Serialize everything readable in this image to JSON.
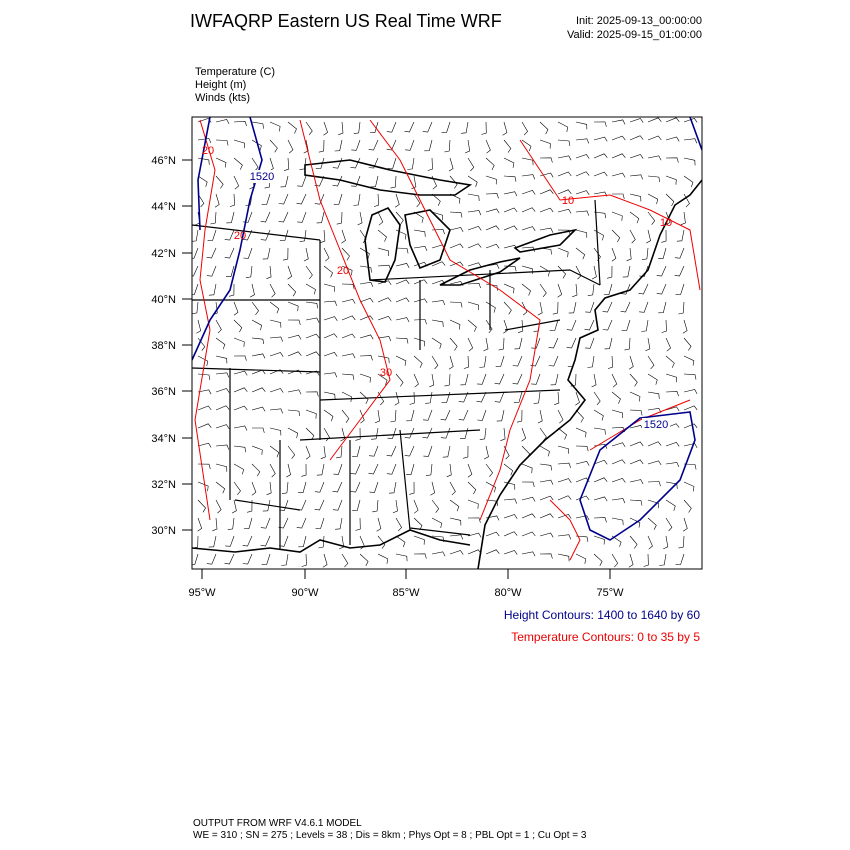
{
  "header": {
    "title": "IWFAQRP Eastern US Real Time WRF",
    "init": "Init: 2025-09-13_00:00:00",
    "valid": "Valid: 2025-09-15_01:00:00"
  },
  "fields": [
    "Temperature   (C)",
    "Height   (m)",
    "Winds   (kts)"
  ],
  "axes": {
    "lat_labels": [
      "46°N",
      "44°N",
      "42°N",
      "40°N",
      "38°N",
      "36°N",
      "34°N",
      "32°N",
      "30°N"
    ],
    "lon_labels": [
      "95°W",
      "90°W",
      "85°W",
      "80°W",
      "75°W"
    ]
  },
  "contour_labels": {
    "height": [
      "1520",
      "1520"
    ],
    "temperature": [
      "20",
      "20",
      "20",
      "30",
      "10",
      "10"
    ]
  },
  "legend": {
    "height": "Height Contours: 1400 to 1640 by 60",
    "temperature": "Temperature Contours: 0 to 35 by 5"
  },
  "footer": {
    "line1": "OUTPUT FROM WRF V4.6.1 MODEL",
    "line2": "WE = 310 ; SN = 275 ; Levels = 38 ; Dis = 8km ; Phys Opt = 8 ; PBL Opt = 1 ; Cu Opt = 3"
  }
}
